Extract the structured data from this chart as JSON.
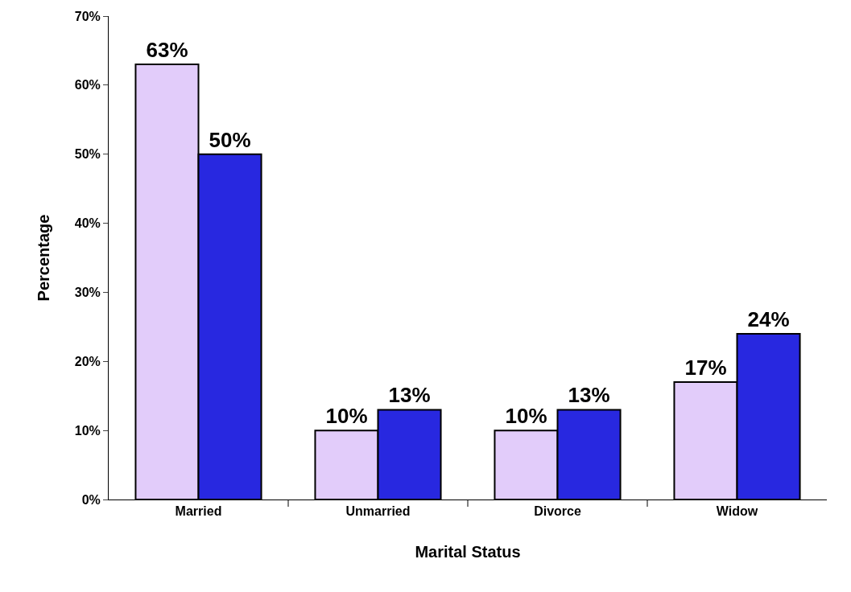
{
  "chart_data": {
    "type": "bar",
    "xlabel": "Marital Status",
    "ylabel": "Percentage",
    "categories": [
      "Married",
      "Unmarried",
      "Divorce",
      "Widow"
    ],
    "series": [
      {
        "color": "#e2ccfa",
        "values": [
          63,
          10,
          10,
          17
        ],
        "value_labels": [
          "63%",
          "10%",
          "10%",
          "17%"
        ]
      },
      {
        "color": "#2828e0",
        "values": [
          50,
          13,
          13,
          24
        ],
        "value_labels": [
          "50%",
          "13%",
          "13%",
          "24%"
        ]
      }
    ],
    "ylim": [
      0,
      70
    ],
    "yticks": [
      {
        "value": 0,
        "label": "0%"
      },
      {
        "value": 10,
        "label": "10%"
      },
      {
        "value": 20,
        "label": "20%"
      },
      {
        "value": 30,
        "label": "30%"
      },
      {
        "value": 40,
        "label": "40%"
      },
      {
        "value": 50,
        "label": "50%"
      },
      {
        "value": 60,
        "label": "60%"
      },
      {
        "value": 70,
        "label": "70%"
      }
    ],
    "legend": false
  }
}
